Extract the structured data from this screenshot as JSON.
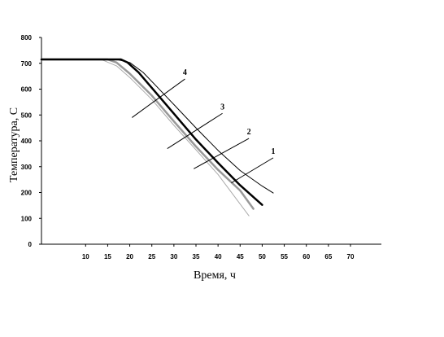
{
  "chart_data": {
    "type": "line",
    "title": "",
    "xlabel": "Время, ч",
    "ylabel": "Температура, С",
    "xlim": [
      0,
      77
    ],
    "ylim": [
      0,
      800
    ],
    "grid": false,
    "legend": "none",
    "x_ticks": [
      "10",
      "15",
      "20",
      "25",
      "30",
      "35",
      "40",
      "45",
      "50",
      "55",
      "60",
      "65",
      "70"
    ],
    "x_tick_values": [
      10,
      15,
      20,
      25,
      30,
      35,
      40,
      45,
      50,
      55,
      60,
      65,
      70
    ],
    "y_ticks": [
      "0",
      "100",
      "200",
      "300",
      "400",
      "500",
      "600",
      "700",
      "800"
    ],
    "y_tick_values": [
      0,
      100,
      200,
      300,
      400,
      500,
      600,
      700,
      800
    ],
    "series": [
      {
        "label": "1",
        "color": "#000000",
        "width": 1,
        "points": [
          [
            0,
            715
          ],
          [
            17,
            715
          ],
          [
            20,
            703
          ],
          [
            23,
            665
          ],
          [
            26,
            612
          ],
          [
            30,
            540
          ],
          [
            35,
            450
          ],
          [
            40,
            363
          ],
          [
            45,
            285
          ],
          [
            50,
            225
          ],
          [
            52.5,
            198
          ]
        ],
        "label_pos": [
          52.5,
          350
        ],
        "pointer_to": [
          43,
          237
        ]
      },
      {
        "label": "2",
        "color": "#000000",
        "width": 2.5,
        "points": [
          [
            0,
            715
          ],
          [
            18,
            715
          ],
          [
            19.5,
            703
          ],
          [
            22,
            665
          ],
          [
            25,
            605
          ],
          [
            30,
            505
          ],
          [
            35,
            405
          ],
          [
            40,
            315
          ],
          [
            45,
            228
          ],
          [
            50,
            152
          ]
        ],
        "label_pos": [
          47,
          425
        ],
        "pointer_to": [
          34.5,
          292
        ]
      },
      {
        "label": "3",
        "color": "#999999",
        "width": 2.5,
        "points": [
          [
            0,
            715
          ],
          [
            15,
            715
          ],
          [
            17,
            703
          ],
          [
            20,
            660
          ],
          [
            25,
            575
          ],
          [
            30,
            475
          ],
          [
            35,
            378
          ],
          [
            40,
            288
          ],
          [
            45,
            208
          ],
          [
            48,
            137
          ]
        ],
        "label_pos": [
          41,
          522
        ],
        "pointer_to": [
          28.5,
          370
        ]
      },
      {
        "label": "4",
        "color": "#aaaaaa",
        "width": 1,
        "points": [
          [
            0,
            715
          ],
          [
            13.5,
            715
          ],
          [
            17,
            690
          ],
          [
            20,
            645
          ],
          [
            25,
            560
          ],
          [
            30,
            460
          ],
          [
            35,
            365
          ],
          [
            40,
            270
          ],
          [
            47,
            110
          ]
        ],
        "label_pos": [
          32.5,
          655
        ],
        "pointer_to": [
          20.5,
          490
        ]
      }
    ]
  }
}
